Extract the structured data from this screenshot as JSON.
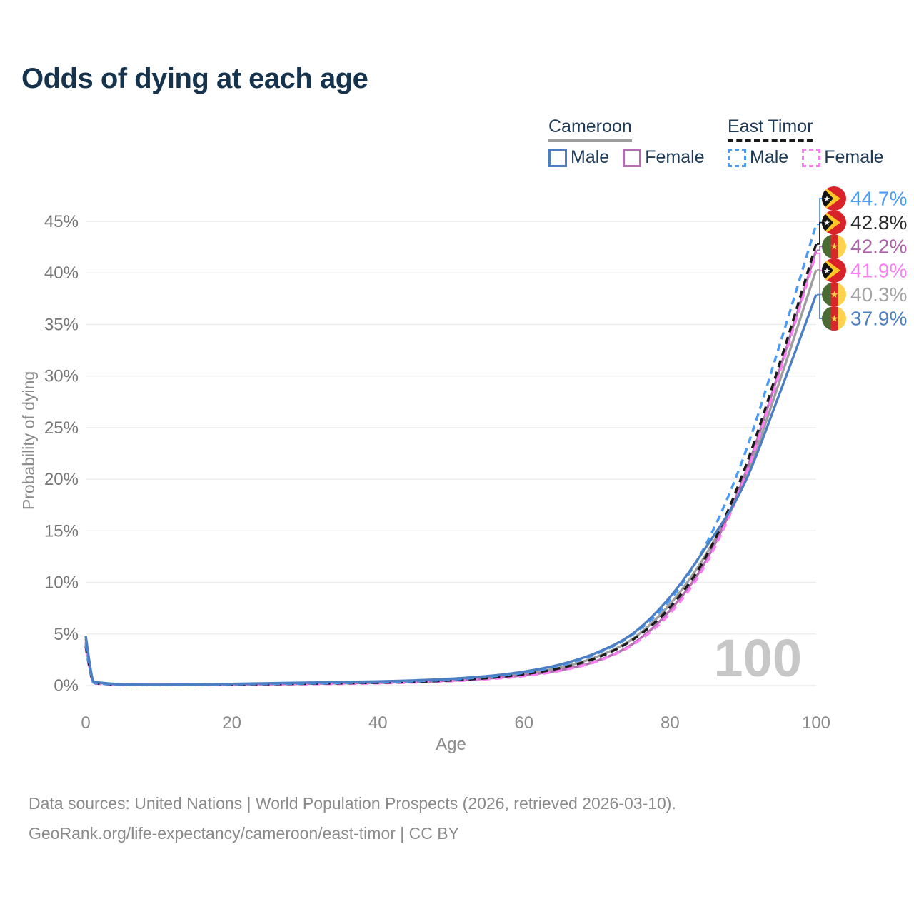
{
  "title": "Odds of dying at each age",
  "legend": {
    "groups": [
      {
        "label": "Cameroon",
        "underline_color": "#9e9e9e",
        "underline_style": "solid",
        "items": [
          {
            "label": "Male",
            "color": "#4d7ec2",
            "dashed": false
          },
          {
            "label": "Female",
            "color": "#b26eb0",
            "dashed": false
          }
        ]
      },
      {
        "label": "East Timor",
        "underline_color": "#1a1a1a",
        "underline_style": "dashed",
        "items": [
          {
            "label": "Male",
            "color": "#4a9af7",
            "dashed": true
          },
          {
            "label": "Female",
            "color": "#fb7ef5",
            "dashed": true
          }
        ]
      }
    ]
  },
  "chart_data": {
    "type": "line",
    "title": "Odds of dying at each age",
    "xlabel": "Age",
    "ylabel": "Probability of dying",
    "x_ticks": [
      0,
      20,
      40,
      60,
      80,
      100
    ],
    "y_ticks_pct": [
      0,
      5,
      10,
      15,
      20,
      25,
      30,
      35,
      40,
      45
    ],
    "xlim": [
      0,
      100
    ],
    "ylim_pct": [
      0,
      46
    ],
    "grid": "horizontal",
    "hover_age_watermark": "100",
    "x": [
      0,
      1,
      2,
      5,
      10,
      15,
      20,
      25,
      30,
      35,
      40,
      45,
      50,
      55,
      60,
      65,
      70,
      75,
      80,
      85,
      90,
      95,
      100
    ],
    "series": [
      {
        "name": "Cameroon Both sexes",
        "country": "Cameroon",
        "sex": "both",
        "color": "#9e9e9e",
        "dashed": false,
        "flag": "cameroon",
        "end_label": "40.3%",
        "label_color": "#a3a3a3",
        "values": [
          4.5,
          0.42,
          0.26,
          0.11,
          0.07,
          0.09,
          0.13,
          0.18,
          0.23,
          0.28,
          0.34,
          0.43,
          0.57,
          0.8,
          1.15,
          1.75,
          2.8,
          4.6,
          7.9,
          12.8,
          19.5,
          29.5,
          40.3
        ]
      },
      {
        "name": "Cameroon Female",
        "country": "Cameroon",
        "sex": "female",
        "color": "#b26eb0",
        "dashed": false,
        "flag": "cameroon",
        "end_label": "42.2%",
        "label_color": "#a963a5",
        "values": [
          4.2,
          0.4,
          0.25,
          0.1,
          0.07,
          0.08,
          0.11,
          0.14,
          0.18,
          0.23,
          0.28,
          0.36,
          0.48,
          0.68,
          1.0,
          1.5,
          2.4,
          4.1,
          7.3,
          12.2,
          20.0,
          30.6,
          42.2
        ]
      },
      {
        "name": "East Timor Female",
        "country": "East Timor",
        "sex": "female",
        "color": "#fb7ef5",
        "dashed": true,
        "flag": "east-timor",
        "end_label": "41.9%",
        "label_color": "#fb7ef5",
        "values": [
          3.6,
          0.3,
          0.17,
          0.07,
          0.05,
          0.06,
          0.08,
          0.11,
          0.14,
          0.17,
          0.22,
          0.3,
          0.42,
          0.62,
          0.92,
          1.45,
          2.35,
          4.0,
          7.0,
          11.9,
          19.7,
          30.3,
          41.9
        ]
      },
      {
        "name": "East Timor Both sexes",
        "country": "East Timor",
        "sex": "both",
        "color": "#1a1a1a",
        "dashed": true,
        "flag": "east-timor",
        "end_label": "42.8%",
        "label_color": "#2b2b2b",
        "values": [
          3.8,
          0.33,
          0.19,
          0.08,
          0.05,
          0.07,
          0.11,
          0.14,
          0.18,
          0.22,
          0.27,
          0.36,
          0.5,
          0.73,
          1.1,
          1.7,
          2.7,
          4.5,
          7.6,
          12.6,
          20.6,
          31.2,
          42.8
        ]
      },
      {
        "name": "East Timor Male",
        "country": "East Timor",
        "sex": "male",
        "color": "#4a9af7",
        "dashed": true,
        "flag": "east-timor",
        "end_label": "44.7%",
        "label_color": "#4a9af7",
        "values": [
          4.0,
          0.35,
          0.2,
          0.09,
          0.06,
          0.08,
          0.13,
          0.17,
          0.21,
          0.26,
          0.32,
          0.42,
          0.58,
          0.85,
          1.25,
          1.95,
          3.1,
          5.0,
          8.3,
          13.8,
          22.0,
          33.0,
          44.7
        ]
      },
      {
        "name": "Cameroon Male",
        "country": "Cameroon",
        "sex": "male",
        "color": "#4d7ec2",
        "dashed": false,
        "flag": "cameroon",
        "end_label": "37.9%",
        "label_color": "#4d7ec2",
        "values": [
          4.8,
          0.45,
          0.28,
          0.12,
          0.08,
          0.1,
          0.16,
          0.22,
          0.28,
          0.34,
          0.4,
          0.5,
          0.66,
          0.92,
          1.35,
          2.05,
          3.2,
          5.1,
          8.6,
          13.5,
          19.3,
          28.3,
          37.9
        ]
      }
    ],
    "flag_colors": {
      "cameroon": {
        "green": "#4a6b34",
        "red": "#d62828",
        "yellow": "#ffd24d",
        "star": "#ffd24d"
      },
      "east_timor": {
        "red": "#d8232a",
        "yellow": "#ffc726",
        "black": "#141414",
        "star": "#ffffff"
      }
    }
  },
  "footer": {
    "line1": "Data sources: United Nations | World Population Prospects (2026, retrieved 2026-03-10).",
    "line2": "GeoRank.org/life-expectancy/cameroon/east-timor | CC BY"
  }
}
